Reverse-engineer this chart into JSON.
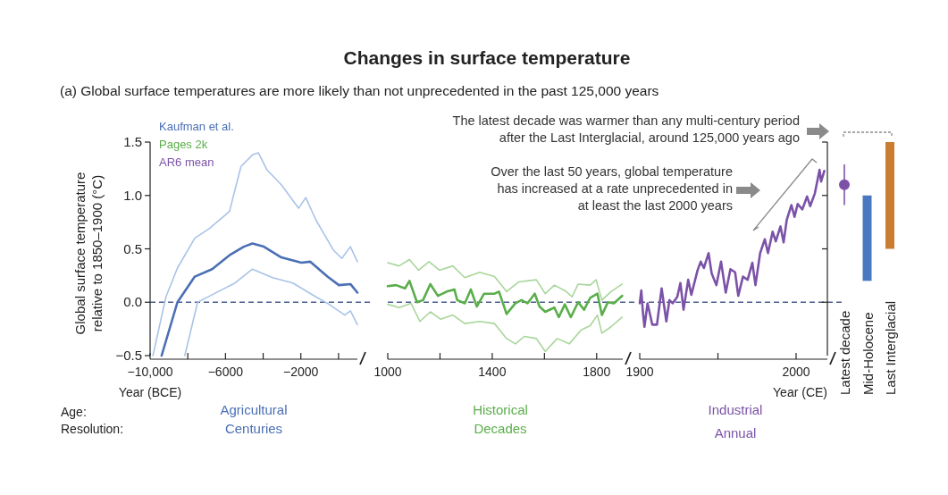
{
  "chart_data": [
    {
      "type": "line",
      "subtitle": "(a) Global surface temperatures are more likely than not unprecedented in the past 125,000 years",
      "xlabel": "Year (BCE)",
      "ylabel": "Global surface temperature relative to 1850–1900 (°C)",
      "xlim": [
        -10000,
        1000
      ],
      "xticks": [
        {
          "value": -10000,
          "label": "−10,000"
        },
        {
          "value": -8000,
          "label": null
        },
        {
          "value": -6000,
          "label": "−6000"
        },
        {
          "value": -4000,
          "label": null
        },
        {
          "value": -2000,
          "label": "−2000"
        },
        {
          "value": 0,
          "label": null
        }
      ],
      "ylim": [
        -0.5,
        1.5
      ],
      "yticks": [
        {
          "value": -0.5,
          "label": "−0.5"
        },
        {
          "value": 0,
          "label": "0.0"
        },
        {
          "value": 0.5,
          "label": "0.5"
        },
        {
          "value": 1,
          "label": "1.0"
        },
        {
          "value": 1.5,
          "label": "1.5"
        }
      ],
      "legend": "top left",
      "ref_lines": [
        {
          "axis": "y",
          "value": 0,
          "color": "#4a5f8c",
          "line_style": "dashed"
        }
      ],
      "annotations": [
        "Age:",
        "Resolution:",
        "Agricultural",
        "Centuries"
      ],
      "series": [
        {
          "color": "#a9c3e8",
          "x": [
            -9850,
            -9160,
            -8550,
            -7630,
            -6860,
            -5790,
            -5180,
            -4570,
            -4260,
            -3800,
            -3040,
            -2120,
            -1740,
            -1200,
            -280,
            170,
            630,
            1000
          ],
          "values": [
            -0.5,
            0.05,
            0.32,
            0.6,
            0.69,
            0.85,
            1.27,
            1.38,
            1.4,
            1.24,
            1.1,
            0.88,
            0.98,
            0.77,
            0.49,
            0.41,
            0.52,
            0.38
          ]
        },
        {
          "name": "Kaufman et al.",
          "color": "#4a6fb5",
          "x": [
            -9390,
            -8550,
            -7630,
            -6710,
            -5790,
            -5030,
            -4570,
            -3960,
            -3040,
            -1970,
            -1510,
            -590,
            20,
            630,
            1000
          ],
          "values": [
            -0.5,
            0.0,
            0.24,
            0.31,
            0.44,
            0.52,
            0.55,
            0.52,
            0.42,
            0.37,
            0.38,
            0.24,
            0.16,
            0.17,
            0.09
          ]
        },
        {
          "color": "#a9c3e8",
          "x": [
            -8160,
            -7480,
            -6710,
            -5490,
            -4570,
            -3500,
            -2430,
            -1200,
            -590,
            330,
            630,
            1000
          ],
          "values": [
            -0.5,
            0.0,
            0.07,
            0.18,
            0.31,
            0.23,
            0.18,
            0.05,
            -0.01,
            -0.12,
            -0.08,
            -0.21
          ]
        }
      ]
    },
    {
      "type": "line",
      "title": "Changes in surface temperature",
      "xlim": [
        1000,
        1900
      ],
      "xticks": [
        1000,
        {
          "value": 1200,
          "label": null
        },
        1400,
        {
          "value": 1600,
          "label": null
        },
        1800
      ],
      "ylim": [
        -0.5,
        1.5
      ],
      "tick_labels": "x",
      "legend": "top left",
      "ref_lines": [
        {
          "axis": "y",
          "value": 0,
          "color": "#4a5f8c",
          "line_style": "dashed"
        }
      ],
      "annotations": [
        "Historical",
        "Decades"
      ],
      "series": [
        {
          "color": "#a8d69a",
          "x": [
            1000,
            1043,
            1083,
            1118,
            1158,
            1198,
            1249,
            1295,
            1352,
            1409,
            1455,
            1501,
            1569,
            1603,
            1638,
            1684,
            1706,
            1729,
            1775,
            1798,
            1820,
            1855,
            1898
          ],
          "values": [
            0.37,
            0.34,
            0.4,
            0.3,
            0.38,
            0.3,
            0.34,
            0.23,
            0.28,
            0.24,
            0.1,
            0.19,
            0.21,
            0.08,
            0.16,
            0.1,
            0.05,
            0.17,
            0.16,
            0.21,
            0.02,
            0.1,
            0.17
          ]
        },
        {
          "name": "Pages 2k",
          "color": "#5aae4a",
          "x": [
            1000,
            1032,
            1066,
            1083,
            1112,
            1135,
            1163,
            1192,
            1226,
            1255,
            1266,
            1295,
            1318,
            1341,
            1369,
            1409,
            1426,
            1455,
            1489,
            1512,
            1535,
            1563,
            1581,
            1603,
            1638,
            1655,
            1678,
            1701,
            1729,
            1752,
            1775,
            1803,
            1820,
            1843,
            1866,
            1898
          ],
          "values": [
            0.15,
            0.16,
            0.13,
            0.2,
            0.0,
            0.02,
            0.17,
            0.06,
            0.1,
            0.12,
            0.02,
            -0.01,
            0.12,
            -0.04,
            0.08,
            0.08,
            0.1,
            -0.11,
            -0.01,
            0.02,
            -0.01,
            0.08,
            -0.04,
            -0.09,
            -0.05,
            -0.14,
            -0.02,
            -0.14,
            0.0,
            -0.07,
            0.04,
            0.08,
            -0.12,
            0.0,
            -0.01,
            0.06
          ]
        },
        {
          "color": "#a8d69a",
          "x": [
            1000,
            1043,
            1089,
            1123,
            1163,
            1203,
            1249,
            1295,
            1352,
            1409,
            1455,
            1489,
            1523,
            1569,
            1603,
            1649,
            1695,
            1741,
            1775,
            1803,
            1820,
            1855,
            1898
          ],
          "values": [
            -0.02,
            -0.05,
            -0.01,
            -0.18,
            -0.09,
            -0.16,
            -0.12,
            -0.2,
            -0.18,
            -0.2,
            -0.34,
            -0.39,
            -0.32,
            -0.34,
            -0.46,
            -0.34,
            -0.39,
            -0.26,
            -0.22,
            -0.12,
            -0.29,
            -0.23,
            -0.14
          ]
        }
      ]
    },
    {
      "type": "line",
      "xlabel": "Year (CE)",
      "xlim": [
        1900,
        2020
      ],
      "xticks": [
        1900,
        {
          "value": 1950,
          "label": null
        },
        2000
      ],
      "ylim": [
        -0.5,
        1.5
      ],
      "tick_labels": "x",
      "legend": "top left",
      "ref_lines": [
        {
          "axis": "y",
          "value": 0,
          "color": "#4a5f8c",
          "line_style": "dashed"
        }
      ],
      "annotations": [
        "The latest decade was warmer than any multi-century period after the Last Interglacial, around 125,000 years ago",
        "Over the last 50 years, global temperature has increased at a rate unprecedented in at least the last 2000 years",
        "Industrial",
        "Annual"
      ],
      "series": [
        {
          "name": "AR6 mean",
          "color": "#7b52a8",
          "x": [
            1900,
            1901,
            1902,
            1903,
            1905,
            1908,
            1911,
            1914,
            1917,
            1919,
            1921,
            1924,
            1926,
            1928,
            1931,
            1933,
            1937,
            1939,
            1941,
            1944,
            1946,
            1949,
            1952,
            1955,
            1958,
            1961,
            1963,
            1966,
            1969,
            1972,
            1974,
            1977,
            1980,
            1982,
            1985,
            1987,
            1990,
            1992,
            1994,
            1997,
            1999,
            2001,
            2004,
            2007,
            2009,
            2012,
            2015,
            2016,
            2018
          ],
          "values": [
            -0.01,
            0.11,
            -0.09,
            -0.23,
            -0.01,
            -0.21,
            -0.21,
            0.13,
            -0.18,
            0.02,
            -0.01,
            0.05,
            0.18,
            -0.07,
            0.21,
            0.07,
            0.3,
            0.38,
            0.32,
            0.46,
            0.27,
            0.16,
            0.38,
            0.09,
            0.31,
            0.28,
            0.06,
            0.24,
            0.21,
            0.37,
            0.16,
            0.46,
            0.59,
            0.46,
            0.66,
            0.57,
            0.71,
            0.56,
            0.77,
            0.91,
            0.8,
            0.92,
            0.87,
            0.99,
            0.9,
            1.02,
            1.24,
            1.13,
            1.23
          ]
        }
      ]
    },
    {
      "type": "bar",
      "categories": [
        "Latest decade",
        "Mid-Holocene",
        "Last Interglacial"
      ],
      "ylim": [
        -0.5,
        1.5
      ],
      "yticks": [
        {
          "value": 0,
          "label": null
        },
        {
          "value": 0.5,
          "label": null
        },
        {
          "value": 1,
          "label": null
        },
        {
          "value": 1.5,
          "label": null
        }
      ],
      "tick_labels": "x",
      "marker": "circle",
      "series": [
        {
          "type": "scatter",
          "color": "#7b52a8",
          "values": [
            1.1,
            null,
            null
          ],
          "errors": [
            [
              0.91,
              1.29
            ],
            null,
            null
          ]
        },
        {
          "colors": [
            null,
            "#4a78c0",
            "#c97d30"
          ],
          "values": [
            null,
            0.8,
            1.0
          ],
          "base": [
            null,
            0.2,
            0.5
          ]
        }
      ]
    }
  ]
}
